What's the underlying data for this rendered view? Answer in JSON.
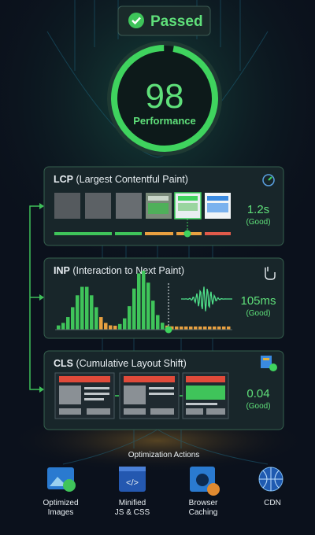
{
  "badge": "Passed",
  "score": {
    "value": "98",
    "label": "Performance"
  },
  "metrics": [
    {
      "abbr": "LCP",
      "name": "(Largest Contentful Paint)",
      "value": "1.2s",
      "status": "(Good)"
    },
    {
      "abbr": "INP",
      "name": "(Interaction to Next Paint)",
      "value": "105ms",
      "status": "(Good)"
    },
    {
      "abbr": "CLS",
      "name": "(Cumulative Layout Shift)",
      "value": "0.04",
      "status": "(Good)"
    }
  ],
  "actions": {
    "title": "Optimization Actions",
    "items": [
      {
        "lines": [
          "Optimized",
          "Images"
        ]
      },
      {
        "lines": [
          "Minified",
          "JS & CSS"
        ]
      },
      {
        "lines": [
          "Browser",
          "Caching"
        ]
      },
      {
        "lines": [
          "CDN"
        ]
      }
    ]
  }
}
